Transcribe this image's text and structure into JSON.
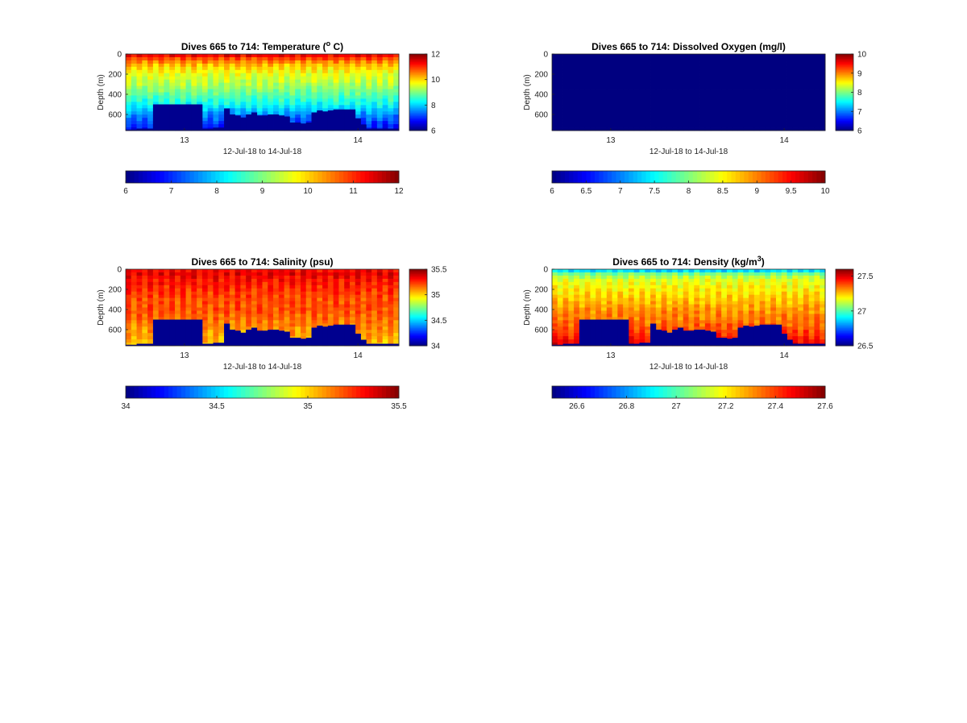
{
  "panels": [
    {
      "key": "temperature",
      "title_main": "Dives 665 to 714: Temperature (",
      "title_sup": "o",
      "title_end": " C)",
      "ylabel": "Depth (m)",
      "xlabel": "12-Jul-18 to 14-Jul-18",
      "y_ticks": [
        "0",
        "200",
        "400",
        "600"
      ],
      "x_ticks": [
        "13",
        "14"
      ],
      "colorbar_ticks": [
        "12",
        "10",
        "8",
        "6"
      ],
      "h_colorbar_ticks": [
        "6",
        "7",
        "8",
        "9",
        "10",
        "11",
        "12"
      ]
    },
    {
      "key": "oxygen",
      "title_main": "Dives 665 to 714: Dissolved Oxygen (mg/l)",
      "title_sup": "",
      "title_end": "",
      "ylabel": "Depth (m)",
      "xlabel": "12-Jul-18 to 14-Jul-18",
      "y_ticks": [
        "0",
        "200",
        "400",
        "600"
      ],
      "x_ticks": [
        "13",
        "14"
      ],
      "colorbar_ticks": [
        "10",
        "9",
        "8",
        "7",
        "6"
      ],
      "h_colorbar_ticks": [
        "6",
        "6.5",
        "7",
        "7.5",
        "8",
        "8.5",
        "9",
        "9.5",
        "10"
      ]
    },
    {
      "key": "salinity",
      "title_main": "Dives 665 to 714: Salinity (psu)",
      "title_sup": "",
      "title_end": "",
      "ylabel": "Depth (m)",
      "xlabel": "12-Jul-18 to 14-Jul-18",
      "y_ticks": [
        "0",
        "200",
        "400",
        "600"
      ],
      "x_ticks": [
        "13",
        "14"
      ],
      "colorbar_ticks": [
        "35.5",
        "35",
        "34.5",
        "34"
      ],
      "h_colorbar_ticks": [
        "34",
        "34.5",
        "35",
        "35.5"
      ]
    },
    {
      "key": "density",
      "title_main": "Dives 665 to 714: Density (kg/m",
      "title_sup": "3",
      "title_end": ")",
      "ylabel": "Depth (m)",
      "xlabel": "12-Jul-18 to 14-Jul-18",
      "y_ticks": [
        "0",
        "200",
        "400",
        "600"
      ],
      "x_ticks": [
        "13",
        "14"
      ],
      "colorbar_ticks": [
        "27.5",
        "27",
        "26.5"
      ],
      "h_colorbar_ticks": [
        "26.6",
        "26.8",
        "27",
        "27.2",
        "27.4",
        "27.6"
      ]
    }
  ],
  "chart_data": [
    {
      "type": "heatmap",
      "title": "Dives 665 to 714: Temperature (° C)",
      "xlabel": "12-Jul-18 to 14-Jul-18",
      "ylabel": "Depth (m)",
      "ylim": [
        760,
        0
      ],
      "xlim": [
        "12-Jul-18",
        "14-Jul-18"
      ],
      "x_ticks": [
        "13",
        "14"
      ],
      "y_ticks": [
        0,
        200,
        400,
        600
      ],
      "clim": [
        6,
        12
      ],
      "colormap": "jet",
      "grid": false,
      "profile_depths_m": [
        0,
        50,
        100,
        200,
        300,
        400,
        500,
        600,
        700,
        760
      ],
      "typical_values_degC": [
        11.5,
        10.8,
        10.2,
        9.6,
        9.3,
        8.8,
        8.3,
        7.6,
        7.0,
        6.8
      ],
      "seabed_depth_m_by_dive": [
        750,
        750,
        740,
        740,
        740,
        500,
        500,
        500,
        500,
        500,
        500,
        500,
        500,
        500,
        740,
        740,
        730,
        730,
        540,
        600,
        610,
        630,
        600,
        580,
        610,
        610,
        600,
        600,
        610,
        620,
        680,
        680,
        690,
        680,
        580,
        560,
        570,
        560,
        550,
        550,
        550,
        550,
        640,
        700,
        740,
        740,
        740,
        740,
        740,
        740
      ]
    },
    {
      "type": "heatmap",
      "title": "Dives 665 to 714: Dissolved Oxygen (mg/l)",
      "xlabel": "12-Jul-18 to 14-Jul-18",
      "ylabel": "Depth (m)",
      "ylim": [
        760,
        0
      ],
      "xlim": [
        "12-Jul-18",
        "14-Jul-18"
      ],
      "x_ticks": [
        "13",
        "14"
      ],
      "y_ticks": [
        0,
        200,
        400,
        600
      ],
      "clim": [
        6,
        10
      ],
      "colormap": "jet",
      "grid": false,
      "uniform_value": 6
    },
    {
      "type": "heatmap",
      "title": "Dives 665 to 714: Salinity (psu)",
      "xlabel": "12-Jul-18 to 14-Jul-18",
      "ylabel": "Depth (m)",
      "ylim": [
        760,
        0
      ],
      "xlim": [
        "12-Jul-18",
        "14-Jul-18"
      ],
      "x_ticks": [
        "13",
        "14"
      ],
      "y_ticks": [
        0,
        200,
        400,
        600
      ],
      "clim": [
        34,
        35.5
      ],
      "colormap": "jet",
      "grid": false,
      "profile_depths_m": [
        0,
        50,
        100,
        200,
        300,
        400,
        500,
        600,
        700,
        760
      ],
      "typical_values_psu": [
        35.3,
        35.35,
        35.3,
        35.25,
        35.2,
        35.2,
        35.15,
        35.1,
        35.05,
        35.0
      ],
      "seabed_depth_m_by_dive": [
        750,
        750,
        740,
        740,
        740,
        500,
        500,
        500,
        500,
        500,
        500,
        500,
        500,
        500,
        740,
        740,
        730,
        730,
        540,
        600,
        610,
        630,
        600,
        580,
        610,
        610,
        600,
        600,
        610,
        620,
        680,
        680,
        690,
        680,
        580,
        560,
        570,
        560,
        550,
        550,
        550,
        550,
        640,
        700,
        740,
        740,
        740,
        740,
        740,
        740
      ]
    },
    {
      "type": "heatmap",
      "title": "Dives 665 to 714: Density (kg/m³)",
      "xlabel": "12-Jul-18 to 14-Jul-18",
      "ylabel": "Depth (m)",
      "ylim": [
        760,
        0
      ],
      "xlim": [
        "12-Jul-18",
        "14-Jul-18"
      ],
      "x_ticks": [
        "13",
        "14"
      ],
      "y_ticks": [
        0,
        200,
        400,
        600
      ],
      "clim": [
        26.5,
        27.6
      ],
      "colormap": "jet",
      "grid": false,
      "profile_depths_m": [
        0,
        50,
        100,
        200,
        300,
        400,
        500,
        600,
        700,
        760
      ],
      "typical_values_kgm3": [
        26.8,
        27.05,
        27.15,
        27.2,
        27.25,
        27.3,
        27.33,
        27.38,
        27.45,
        27.5
      ],
      "seabed_depth_m_by_dive": [
        750,
        750,
        740,
        740,
        740,
        500,
        500,
        500,
        500,
        500,
        500,
        500,
        500,
        500,
        740,
        740,
        730,
        730,
        540,
        600,
        610,
        630,
        600,
        580,
        610,
        610,
        600,
        600,
        610,
        620,
        680,
        680,
        690,
        680,
        580,
        560,
        570,
        560,
        550,
        550,
        550,
        550,
        640,
        700,
        740,
        740,
        740,
        740,
        740,
        740
      ]
    }
  ]
}
